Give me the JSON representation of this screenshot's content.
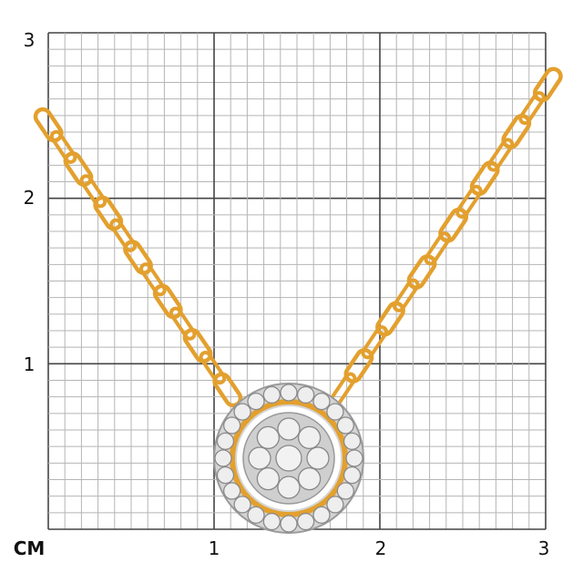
{
  "scale": {
    "unit_label": "CM",
    "y_ticks": [
      "3",
      "2",
      "1"
    ],
    "x_ticks": [
      "1",
      "2",
      "3"
    ],
    "range_cm": [
      0,
      3
    ],
    "minor_step_mm": 1
  },
  "product": {
    "type": "pendant-necklace",
    "chain_color": "#E3A02E",
    "setting_color": "#C9C9C9"
  }
}
